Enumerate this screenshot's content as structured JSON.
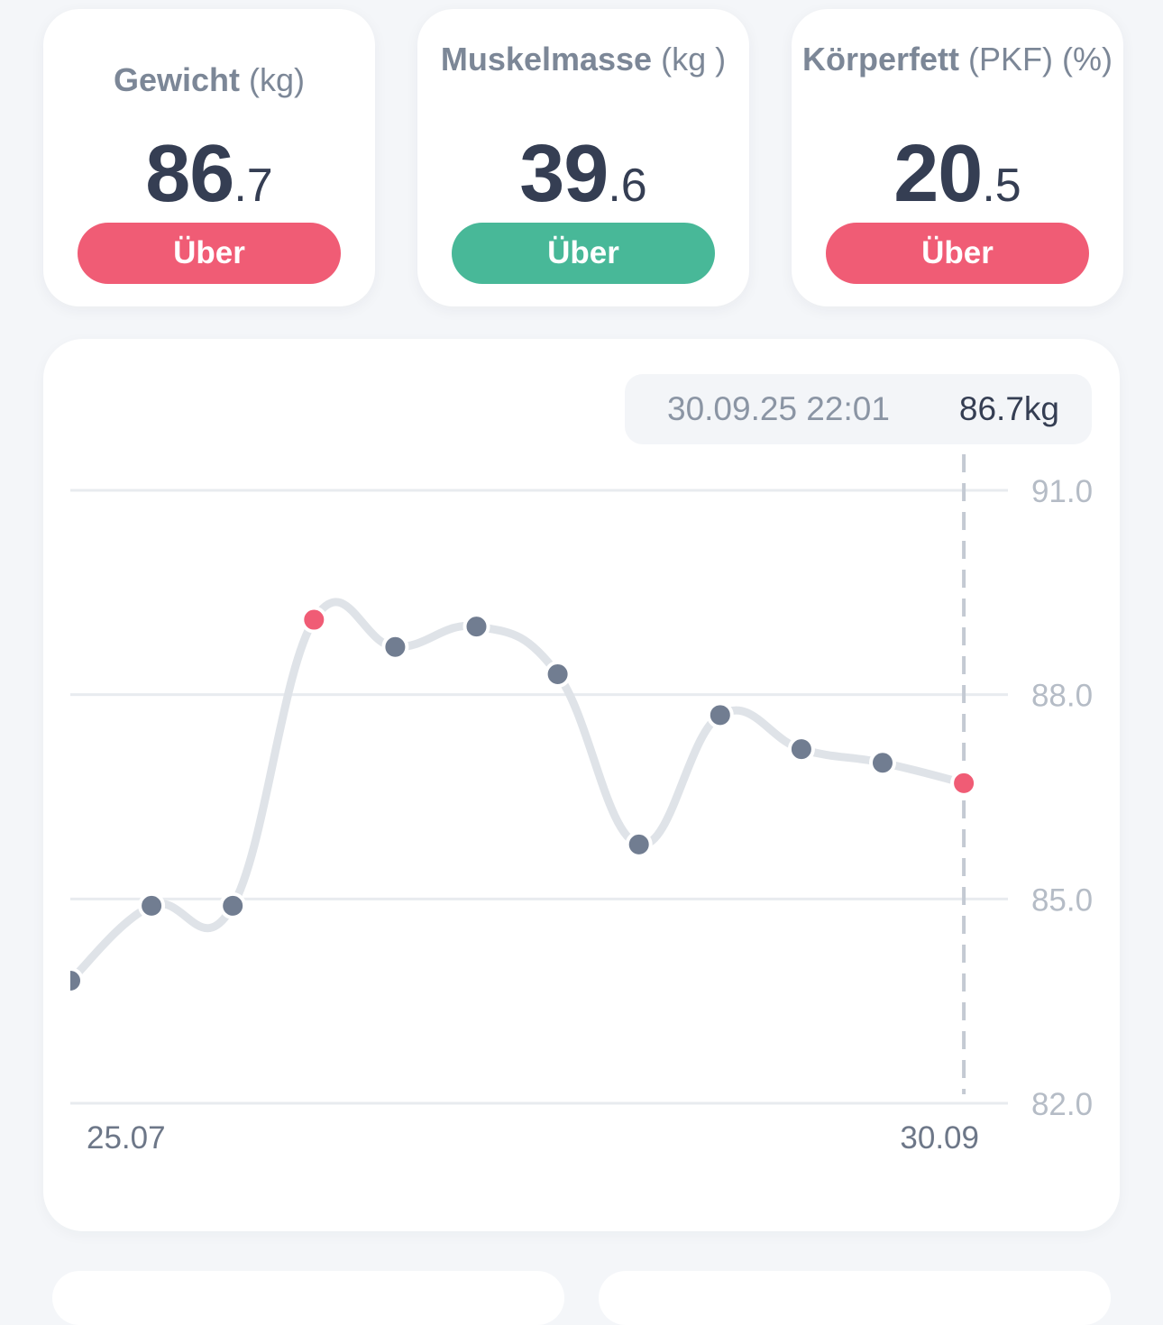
{
  "cards": [
    {
      "name": "Gewicht",
      "unit": "(kg)",
      "int": "86",
      "dec": ".7",
      "badge": "Über",
      "badge_color": "#f05c75",
      "selected": true
    },
    {
      "name": "Muskelmasse",
      "unit": "(kg )",
      "int": "39",
      "dec": ".6",
      "badge": "Über",
      "badge_color": "#48b898",
      "selected": false
    },
    {
      "name": "Körperfett",
      "unit": "(PKF) (%)",
      "int": "20",
      "dec": ".5",
      "badge": "Über",
      "badge_color": "#f05c75",
      "selected": false
    }
  ],
  "tooltip": {
    "date": "30.09.25 22:01",
    "value": "86.7kg"
  },
  "chart_data": {
    "type": "line",
    "x_labels": [
      "25.07",
      "30.09"
    ],
    "yticks": [
      "91.0",
      "88.0",
      "85.0",
      "82.0"
    ],
    "ylim": [
      82.0,
      91.0
    ],
    "grid": true,
    "series": [
      {
        "values": [
          83.8,
          84.9,
          84.9,
          89.1,
          88.7,
          89.0,
          88.3,
          85.8,
          87.7,
          87.2,
          87.0,
          86.7
        ],
        "highlight_indices": [
          3,
          11
        ]
      }
    ],
    "colors": {
      "line": "#dfe3e8",
      "point": "#717d91",
      "highlight": "#f05c75",
      "grid": "#e8ebef",
      "tick": "#b5bcc6",
      "xlabel": "#6d7788",
      "cursor": "#c4cad3"
    }
  }
}
